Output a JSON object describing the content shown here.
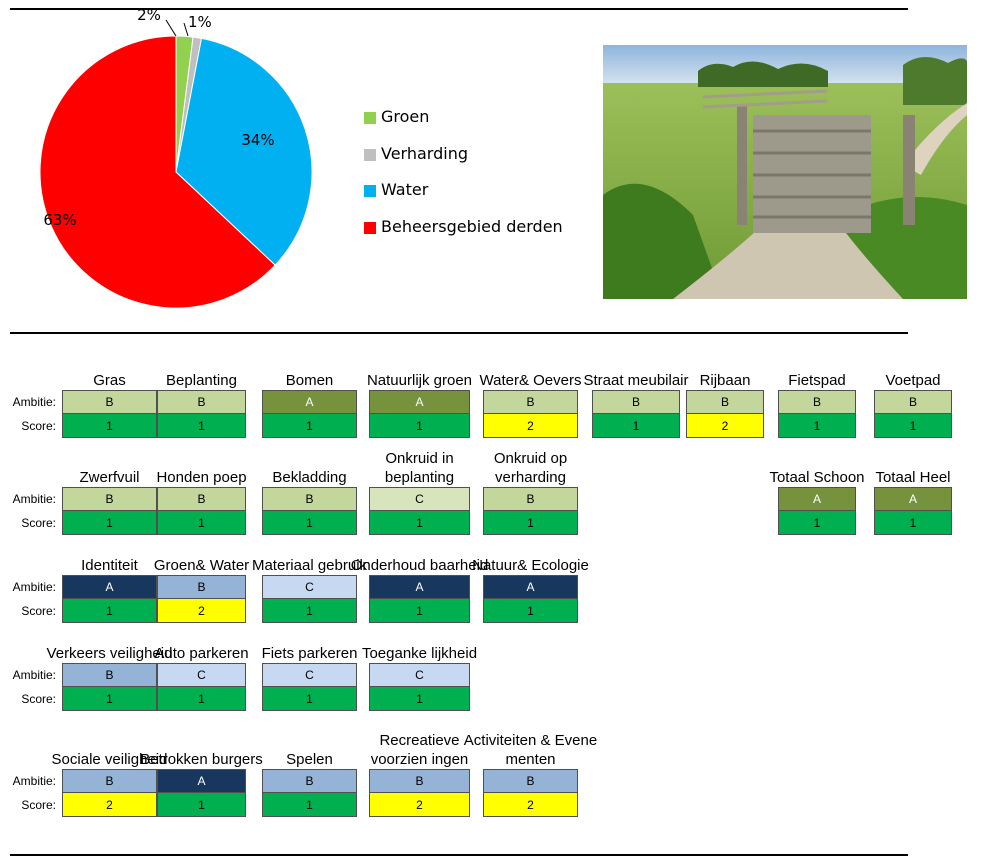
{
  "chart_data": {
    "type": "pie",
    "title": "",
    "legend_position": "right",
    "slices": [
      {
        "name": "Groen",
        "value": 2,
        "label": "2%",
        "color": "#92D050"
      },
      {
        "name": "Verharding",
        "value": 1,
        "label": "1%",
        "color": "#BFBFBF"
      },
      {
        "name": "Water",
        "value": 34,
        "label": "34%",
        "color": "#00B0F0"
      },
      {
        "name": "Beheersgebied derden",
        "value": 63,
        "label": "63%",
        "color": "#FF0000"
      }
    ]
  },
  "photo": {
    "icon": "photo-fence-gate-meadow"
  },
  "labels": {
    "ambitie": "Ambitie:",
    "score": "Score:"
  },
  "colors": {
    "ambitie": {
      "A_green": "#76923C",
      "B_green": "#C3D69B",
      "C_green": "#D7E4BC",
      "A_blue": "#17375E",
      "B_blue": "#95B3D7",
      "C_blue": "#C6D9F1"
    },
    "score": {
      "1": "#00B050",
      "2": "#FFFF00"
    }
  },
  "grid": [
    [
      {
        "title": "Gras",
        "ambitie": "B",
        "score": "1",
        "theme": "green"
      },
      {
        "title": "Beplanting",
        "ambitie": "B",
        "score": "1",
        "theme": "green"
      },
      {
        "title": "Bomen",
        "ambitie": "A",
        "score": "1",
        "theme": "green"
      },
      {
        "title": "Natuurlijk groen",
        "ambitie": "A",
        "score": "1",
        "theme": "green"
      },
      {
        "title": "Water& Oevers",
        "ambitie": "B",
        "score": "2",
        "theme": "green"
      },
      {
        "title": "Straat meubilair",
        "ambitie": "B",
        "score": "1",
        "theme": "green"
      },
      {
        "title": "Rijbaan",
        "ambitie": "B",
        "score": "2",
        "theme": "green"
      },
      {
        "title": "Fietspad",
        "ambitie": "B",
        "score": "1",
        "theme": "green"
      },
      {
        "title": "Voetpad",
        "ambitie": "B",
        "score": "1",
        "theme": "green"
      }
    ],
    [
      {
        "title": "Zwerfvuil",
        "ambitie": "B",
        "score": "1",
        "theme": "green"
      },
      {
        "title": "Honden poep",
        "ambitie": "B",
        "score": "1",
        "theme": "green"
      },
      {
        "title": "Bekladding",
        "ambitie": "B",
        "score": "1",
        "theme": "green"
      },
      {
        "title": "Onkruid in beplanting",
        "ambitie": "C",
        "score": "1",
        "theme": "green"
      },
      {
        "title": "Onkruid op verharding",
        "ambitie": "B",
        "score": "1",
        "theme": "green"
      },
      null,
      null,
      {
        "title": "Totaal Schoon",
        "ambitie": "A",
        "score": "1",
        "theme": "green"
      },
      {
        "title": "Totaal Heel",
        "ambitie": "A",
        "score": "1",
        "theme": "green"
      }
    ],
    [
      {
        "title": "Identiteit",
        "ambitie": "A",
        "score": "1",
        "theme": "blue"
      },
      {
        "title": "Groen& Water",
        "ambitie": "B",
        "score": "2",
        "theme": "blue"
      },
      {
        "title": "Materiaal gebruik",
        "ambitie": "C",
        "score": "1",
        "theme": "blue"
      },
      {
        "title": "Onderhoud baarheid",
        "ambitie": "A",
        "score": "1",
        "theme": "blue"
      },
      {
        "title": "Natuur& Ecologie",
        "ambitie": "A",
        "score": "1",
        "theme": "blue"
      }
    ],
    [
      {
        "title": "Verkeers veiligheid",
        "ambitie": "B",
        "score": "1",
        "theme": "blue"
      },
      {
        "title": "Auto parkeren",
        "ambitie": "C",
        "score": "1",
        "theme": "blue"
      },
      {
        "title": "Fiets parkeren",
        "ambitie": "C",
        "score": "1",
        "theme": "blue"
      },
      {
        "title": "Toeganke lijkheid",
        "ambitie": "C",
        "score": "1",
        "theme": "blue"
      }
    ],
    [
      {
        "title": "Sociale veiligheid",
        "ambitie": "B",
        "score": "2",
        "theme": "blue"
      },
      {
        "title": "Betrokken burgers",
        "ambitie": "A",
        "score": "1",
        "theme": "blue"
      },
      {
        "title": "Spelen",
        "ambitie": "B",
        "score": "1",
        "theme": "blue"
      },
      {
        "title": "Recreatieve voorzien ingen",
        "ambitie": "B",
        "score": "2",
        "theme": "blue"
      },
      {
        "title": "Activiteiten & Evene menten",
        "ambitie": "B",
        "score": "2",
        "theme": "blue"
      }
    ]
  ]
}
